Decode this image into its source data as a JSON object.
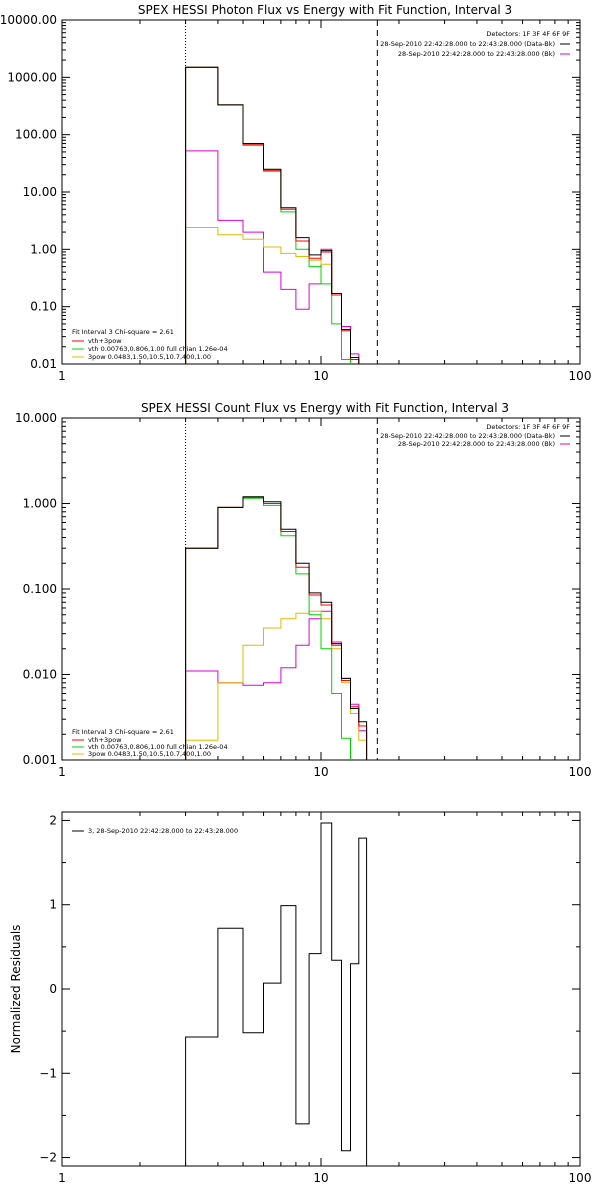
{
  "chart_data": [
    {
      "type": "line",
      "title": "SPEX HESSI Photon Flux vs Energy with Fit Function, Interval 3",
      "xscale": "log",
      "yscale": "log",
      "xlim": [
        1,
        100
      ],
      "ylim": [
        0.01,
        10000
      ],
      "x_ticks": [
        "1",
        "10",
        "100"
      ],
      "y_ticks": [
        "0.01",
        "0.10",
        "1.00",
        "10.00",
        "100.00",
        "1000.00",
        "10000.00"
      ],
      "info_right": [
        "Detectors: 1F 3F 4F 6F 9F",
        "28-Sep-2010 22:42:28.000 to 22:43:28.000 (Data-Bk)",
        "28-Sep-2010 22:42:28.000 to 22:43:28.000 (Bk)"
      ],
      "info_left": [
        "Fit Interval 3   Chi-square = 2.61",
        "vth+3pow",
        "vth 0.00763,0.806,1.00  full chian 1.26e-04",
        "3pow 0.0483,1.50,10.5,10.7,400,1.00"
      ],
      "vlines": [
        3.0,
        16.5
      ],
      "edges": [
        3.0,
        4.0,
        5.0,
        6.0,
        7.0,
        8.0,
        9.0,
        10.0,
        11.0,
        12.0,
        13.0,
        14.0,
        15.0,
        16.5
      ],
      "series": [
        {
          "values": [
            1500,
            330,
            70,
            25,
            5.3,
            1.6,
            0.8,
            0.95,
            0.17,
            0.04,
            0.013,
            null,
            null
          ]
        },
        {
          "values": [
            1500,
            330,
            68,
            24,
            5.0,
            1.4,
            0.7,
            0.9,
            0.16,
            0.038,
            0.012,
            null,
            null
          ]
        },
        {
          "values": [
            1500,
            330,
            65,
            23,
            4.5,
            1.0,
            0.5,
            0.25,
            0.05,
            0.012,
            null,
            null,
            null
          ]
        },
        {
          "values": [
            2.4,
            1.8,
            1.5,
            1.1,
            0.85,
            0.75,
            0.65,
            0.55,
            0.16,
            0.04,
            0.012,
            null,
            null
          ]
        },
        {
          "values": [
            52,
            3.2,
            2.0,
            0.4,
            0.2,
            0.09,
            0.25,
            1.0,
            0.17,
            0.045,
            0.015,
            null,
            null
          ]
        }
      ]
    },
    {
      "type": "line",
      "title": "SPEX HESSI Count Flux vs Energy with Fit Function, Interval 3",
      "xscale": "log",
      "yscale": "log",
      "xlim": [
        1,
        100
      ],
      "ylim": [
        0.001,
        10
      ],
      "x_ticks": [
        "1",
        "10",
        "100"
      ],
      "y_ticks": [
        "0.001",
        "0.010",
        "0.100",
        "1.000",
        "10.000"
      ],
      "info_right": [
        "Detectors: 1F 3F 4F 6F 9F",
        "28-Sep-2010 22:42:28.000 to 22:43:28.000 (Data-Bk)",
        "28-Sep-2010 22:42:28.000 to 22:43:28.000 (Bk)"
      ],
      "info_left": [
        "Fit Interval 3   Chi-square = 2.61",
        "vth+3pow",
        "vth 0.00763,0.806,1.00  full chian 1.26e-04",
        "3pow 0.0483,1.50,10.5,10.7,400,1.00"
      ],
      "vlines": [
        3.0,
        16.5
      ],
      "edges": [
        3.0,
        4.0,
        5.0,
        6.0,
        7.0,
        8.0,
        9.0,
        10.0,
        11.0,
        12.0,
        13.0,
        14.0,
        15.0,
        16.5
      ],
      "series": [
        {
          "values": [
            0.3,
            0.9,
            1.2,
            1.05,
            0.5,
            0.2,
            0.09,
            0.07,
            0.023,
            0.009,
            0.004,
            0.0028,
            null
          ]
        },
        {
          "values": [
            0.3,
            0.9,
            1.18,
            1.0,
            0.47,
            0.18,
            0.085,
            0.065,
            0.022,
            0.0085,
            0.0042,
            0.0025,
            null
          ]
        },
        {
          "values": [
            0.3,
            0.9,
            1.15,
            0.95,
            0.42,
            0.15,
            0.05,
            0.02,
            0.006,
            0.0018,
            null,
            null,
            null
          ]
        },
        {
          "values": [
            0.0017,
            0.008,
            0.022,
            0.035,
            0.045,
            0.052,
            0.055,
            0.045,
            0.02,
            0.008,
            0.0035,
            0.0017,
            null
          ]
        },
        {
          "values": [
            0.011,
            0.008,
            0.0075,
            0.008,
            0.012,
            0.022,
            0.045,
            0.055,
            0.024,
            0.009,
            0.0045,
            0.0022,
            null
          ]
        }
      ]
    },
    {
      "type": "line",
      "title": "",
      "ylabel": "Normalized Residuals",
      "xscale": "log",
      "xlim": [
        1,
        100
      ],
      "ylim": [
        -2.1,
        2.1
      ],
      "x_ticks": [
        "1",
        "10",
        "100"
      ],
      "y_ticks": [
        "-2",
        "-1",
        "0",
        "1",
        "2"
      ],
      "legend": [
        "3, 28-Sep-2010 22:42:28.000 to 22:43:28.000"
      ],
      "edges": [
        3.0,
        4.0,
        5.0,
        6.0,
        7.0,
        8.0,
        9.0,
        10.0,
        11.0,
        12.0,
        13.0,
        14.0,
        15.0,
        16.5
      ],
      "series": [
        {
          "values": [
            -0.57,
            0.72,
            -0.52,
            0.07,
            0.99,
            -1.6,
            0.42,
            1.97,
            0.34,
            -1.92,
            0.3,
            1.79,
            null
          ]
        }
      ]
    }
  ],
  "colors": {
    "data_minus_bk": "#000000",
    "fit_total": "#ff0000",
    "vth": "#00d400",
    "pow": "#e6b800",
    "bk": "#dd00dd",
    "axis": "#000000"
  }
}
